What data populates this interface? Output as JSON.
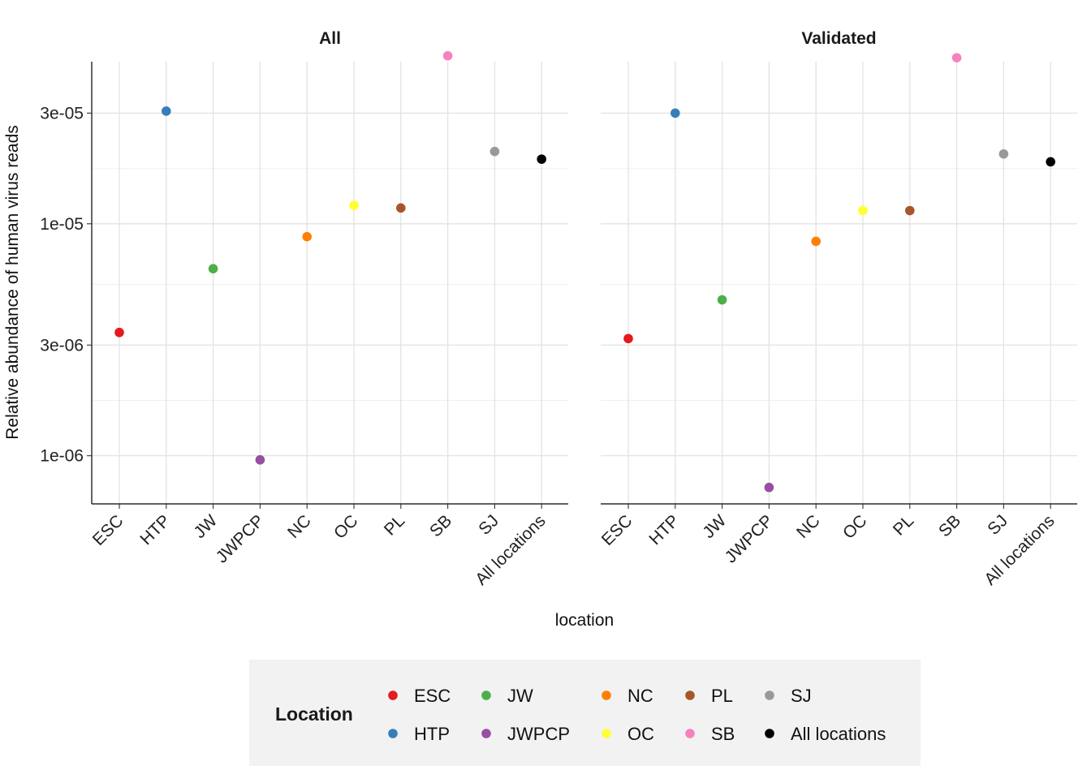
{
  "chart_data": {
    "type": "scatter",
    "ylabel": "Relative abundance of human virus reads",
    "xlabel": "location",
    "y_scale": "log10",
    "ylim": [
      6.2e-07,
      5e-05
    ],
    "yticks": [
      {
        "value": 1e-06,
        "label": "1e-06"
      },
      {
        "value": 3e-06,
        "label": "3e-06"
      },
      {
        "value": 1e-05,
        "label": "1e-05"
      },
      {
        "value": 3e-05,
        "label": "3e-05"
      }
    ],
    "y_minor_gridlines": [
      5.5e-07,
      1.73e-06,
      5.48e-06,
      1.73e-05,
      5.48e-05
    ],
    "categories": [
      "ESC",
      "HTP",
      "JW",
      "JWPCP",
      "NC",
      "OC",
      "PL",
      "SB",
      "SJ",
      "All locations"
    ],
    "grid": true,
    "legend_position": "bottom",
    "panels": [
      {
        "title": "All",
        "values": [
          3.4e-06,
          3.06e-05,
          6.4e-06,
          9.6e-07,
          8.8e-06,
          1.2e-05,
          1.17e-05,
          5.3e-05,
          2.05e-05,
          1.9e-05
        ]
      },
      {
        "title": "Validated",
        "values": [
          3.2e-06,
          3e-05,
          4.7e-06,
          7.3e-07,
          8.4e-06,
          1.14e-05,
          1.14e-05,
          5.2e-05,
          2e-05,
          1.85e-05
        ]
      }
    ],
    "legend": {
      "title": "Location",
      "items": [
        {
          "label": "ESC",
          "color": "#e41a1c"
        },
        {
          "label": "HTP",
          "color": "#377eb8"
        },
        {
          "label": "JW",
          "color": "#4daf4a"
        },
        {
          "label": "JWPCP",
          "color": "#984ea3"
        },
        {
          "label": "NC",
          "color": "#ff7f00"
        },
        {
          "label": "OC",
          "color": "#ffff33"
        },
        {
          "label": "PL",
          "color": "#a65628"
        },
        {
          "label": "SB",
          "color": "#f781bf"
        },
        {
          "label": "SJ",
          "color": "#999999"
        },
        {
          "label": "All locations",
          "color": "#000000"
        }
      ]
    }
  }
}
